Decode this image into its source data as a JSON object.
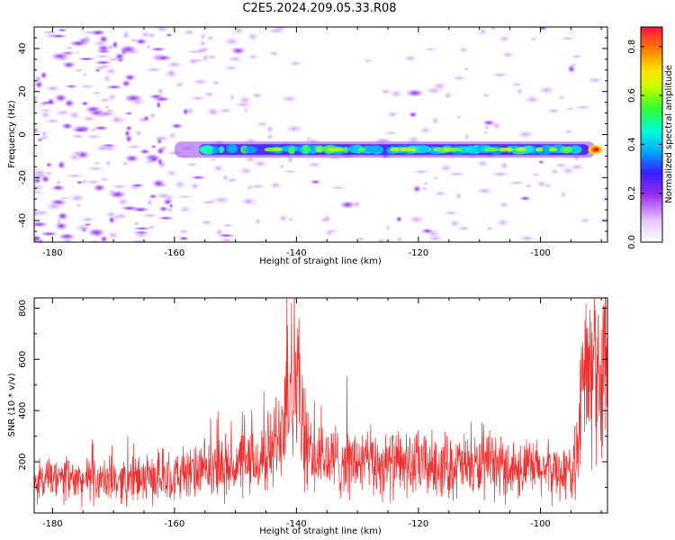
{
  "title": "C2E5.2024.209.05.33.R08",
  "chart_data": [
    {
      "type": "heatmap",
      "xlabel": "Height of straight line (km)",
      "ylabel": "Frequency (Hz)",
      "xlim": [
        -183,
        -89
      ],
      "ylim": [
        -50,
        50
      ],
      "xticks": [
        -180,
        -160,
        -140,
        -120,
        -100
      ],
      "yticks": [
        40,
        20,
        0,
        -20,
        -40
      ],
      "colorbar": {
        "label": "Normalized spectral amplitude",
        "range": [
          0.0,
          0.88
        ],
        "ticks": [
          0.0,
          0.2,
          0.4,
          0.6,
          0.8
        ]
      },
      "features": {
        "signal_line_frequency_hz": -7,
        "signal_start_km": -160,
        "signal_end_km": -91,
        "peak_amplitude": 0.85,
        "peak_height_km": -91
      }
    },
    {
      "type": "line",
      "xlabel": "Height of straight line (km)",
      "ylabel": "SNR (10 * v/v)",
      "xlim": [
        -183,
        -89
      ],
      "ylim": [
        0,
        840
      ],
      "xticks": [
        -180,
        -160,
        -140,
        -120,
        -100
      ],
      "yticks": [
        200,
        400,
        600,
        800
      ],
      "series": [
        {
          "color": "#ef3030",
          "profile": [
            {
              "x": -183,
              "y": 130
            },
            {
              "x": -170,
              "y": 125
            },
            {
              "x": -160,
              "y": 140
            },
            {
              "x": -155,
              "y": 165
            },
            {
              "x": -150,
              "y": 185
            },
            {
              "x": -146,
              "y": 200
            },
            {
              "x": -143,
              "y": 280
            },
            {
              "x": -141,
              "y": 560
            },
            {
              "x": -140,
              "y": 520
            },
            {
              "x": -139,
              "y": 330
            },
            {
              "x": -138,
              "y": 220
            },
            {
              "x": -132,
              "y": 200
            },
            {
              "x": -125,
              "y": 190
            },
            {
              "x": -115,
              "y": 185
            },
            {
              "x": -105,
              "y": 175
            },
            {
              "x": -95,
              "y": 160
            },
            {
              "x": -94,
              "y": 220
            },
            {
              "x": -93,
              "y": 520
            },
            {
              "x": -90,
              "y": 550
            },
            {
              "x": -89,
              "y": 500
            }
          ],
          "peaks": [
            {
              "x": -140.8,
              "y": 820
            },
            {
              "x": -91.2,
              "y": 840
            },
            {
              "x": -139.6,
              "y": 760
            },
            {
              "x": -92.4,
              "y": 720
            }
          ]
        }
      ]
    }
  ]
}
